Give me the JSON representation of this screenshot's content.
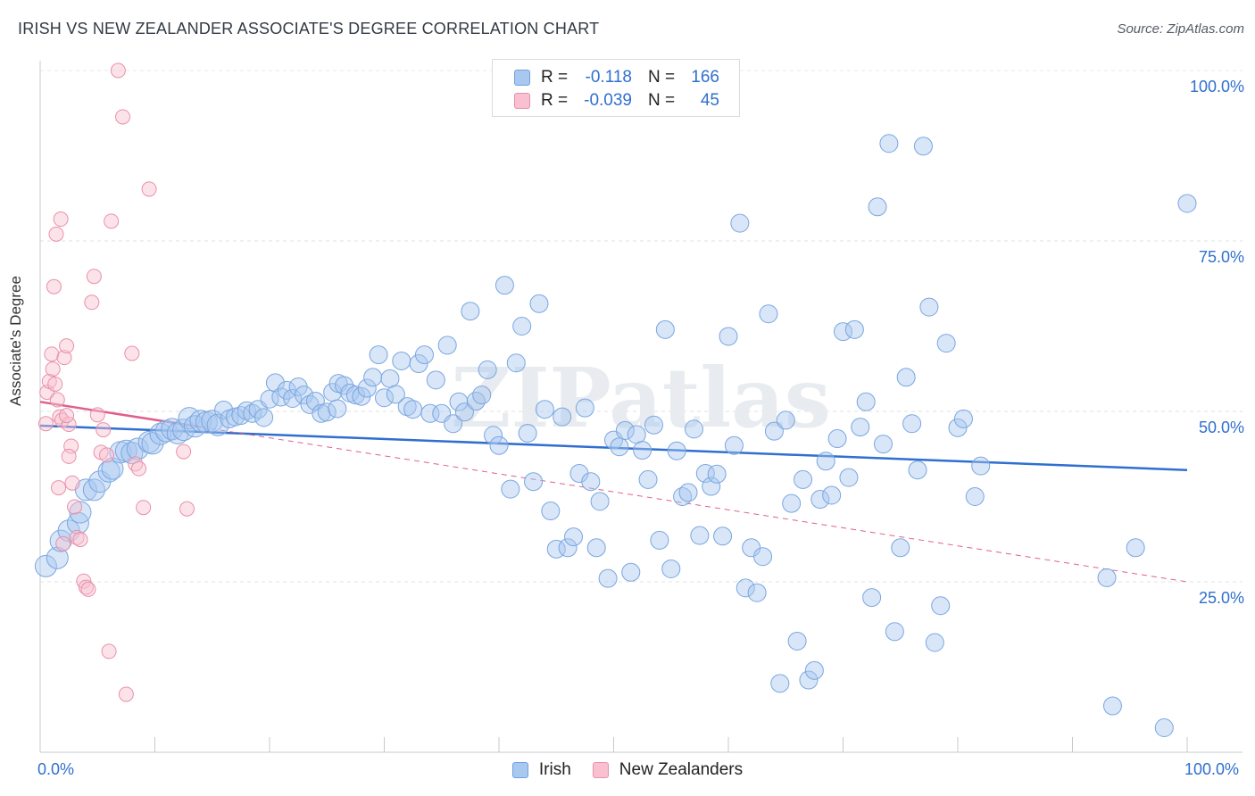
{
  "title": "IRISH VS NEW ZEALANDER ASSOCIATE'S DEGREE CORRELATION CHART",
  "source": "Source: ZipAtlas.com",
  "watermark": "ZIPatlas",
  "legend_top": [
    {
      "r_label": "R =",
      "r_value": "-0.118",
      "n_label": "N =",
      "n_value": "166",
      "color": "#a8c8f0",
      "stroke": "#6f9fe0"
    },
    {
      "r_label": "R =",
      "r_value": "-0.039",
      "n_label": "N =",
      "n_value": "45",
      "color": "#f8c0d0",
      "stroke": "#e890aa"
    }
  ],
  "legend_bottom": [
    {
      "label": "Irish",
      "color": "#a8c8f0",
      "stroke": "#6f9fe0"
    },
    {
      "label": "New Zealanders",
      "color": "#f8c0d0",
      "stroke": "#e890aa"
    }
  ],
  "axis": {
    "ylabel": "Associate's Degree",
    "x_tick_left": "0.0%",
    "x_tick_right": "100.0%",
    "y_ticks": [
      "100.0%",
      "75.0%",
      "50.0%",
      "25.0%"
    ]
  },
  "chart_data": {
    "type": "scatter",
    "title": "IRISH VS NEW ZEALANDER ASSOCIATE'S DEGREE CORRELATION CHART",
    "xlabel": "",
    "ylabel": "Associate's Degree",
    "xlim": [
      0,
      100
    ],
    "ylim": [
      0,
      100
    ],
    "y_ticks": [
      25,
      50,
      75,
      100
    ],
    "grid": "horizontal dashed",
    "legend_position": "top-center",
    "series": [
      {
        "name": "Irish",
        "color": "#6f9fe0",
        "trend": {
          "x0": 0,
          "y0": 47.9,
          "x1": 100,
          "y1": 41.4
        },
        "points": [
          [
            0.5,
            27.3
          ],
          [
            1.5,
            28.5
          ],
          [
            1.8,
            31
          ],
          [
            2.5,
            32.5
          ],
          [
            3.3,
            33.6
          ],
          [
            3.5,
            35.2
          ],
          [
            4,
            38.5
          ],
          [
            4.7,
            38.5
          ],
          [
            5.2,
            39.7
          ],
          [
            6,
            41.2
          ],
          [
            6.3,
            41.6
          ],
          [
            7,
            44
          ],
          [
            7.5,
            44.2
          ],
          [
            8,
            43.9
          ],
          [
            8.5,
            44.5
          ],
          [
            9.5,
            45.5
          ],
          [
            9.8,
            45.3
          ],
          [
            10.5,
            46.7
          ],
          [
            11,
            47.1
          ],
          [
            11.5,
            47.4
          ],
          [
            12,
            46.8
          ],
          [
            12.5,
            47.3
          ],
          [
            13,
            49
          ],
          [
            13.5,
            47.8
          ],
          [
            14,
            48.6
          ],
          [
            14.5,
            48.4
          ],
          [
            15,
            48.6
          ],
          [
            15.5,
            48
          ],
          [
            16,
            50.2
          ],
          [
            16.5,
            48.9
          ],
          [
            17,
            49.2
          ],
          [
            17.5,
            49.4
          ],
          [
            18,
            50.1
          ],
          [
            18.5,
            49.7
          ],
          [
            19,
            50.3
          ],
          [
            19.5,
            49.1
          ],
          [
            20,
            51.8
          ],
          [
            20.5,
            54.2
          ],
          [
            21,
            52.1
          ],
          [
            21.5,
            53.1
          ],
          [
            22,
            51.9
          ],
          [
            22.5,
            53.6
          ],
          [
            23,
            52.4
          ],
          [
            23.5,
            51
          ],
          [
            24,
            51.5
          ],
          [
            24.5,
            49.7
          ],
          [
            25,
            49.9
          ],
          [
            25.5,
            52.8
          ],
          [
            25.9,
            50.4
          ],
          [
            26,
            54.1
          ],
          [
            26.5,
            53.8
          ],
          [
            27,
            52.7
          ],
          [
            27.5,
            52.4
          ],
          [
            28,
            52.2
          ],
          [
            28.5,
            53.4
          ],
          [
            29,
            55
          ],
          [
            29.5,
            58.3
          ],
          [
            30,
            52
          ],
          [
            30.5,
            54.8
          ],
          [
            31,
            52.5
          ],
          [
            31.5,
            57.4
          ],
          [
            32,
            50.7
          ],
          [
            32.5,
            50.3
          ],
          [
            33,
            57
          ],
          [
            33.5,
            58.3
          ],
          [
            34,
            49.7
          ],
          [
            34.5,
            54.6
          ],
          [
            35,
            49.7
          ],
          [
            35.5,
            59.7
          ],
          [
            36,
            48.2
          ],
          [
            36.5,
            51.4
          ],
          [
            37,
            49.9
          ],
          [
            37.5,
            64.7
          ],
          [
            38,
            51.5
          ],
          [
            38.5,
            52.4
          ],
          [
            39,
            56.1
          ],
          [
            39.5,
            46.5
          ],
          [
            40,
            45
          ],
          [
            40.5,
            68.5
          ],
          [
            41,
            38.6
          ],
          [
            41.5,
            57.1
          ],
          [
            42,
            62.5
          ],
          [
            42.5,
            46.8
          ],
          [
            43,
            39.7
          ],
          [
            43.5,
            65.8
          ],
          [
            44,
            50.3
          ],
          [
            44.5,
            35.4
          ],
          [
            45,
            29.8
          ],
          [
            45.5,
            49.2
          ],
          [
            46,
            30
          ],
          [
            46.5,
            31.6
          ],
          [
            47,
            40.9
          ],
          [
            47.5,
            50.5
          ],
          [
            48,
            39.7
          ],
          [
            48.5,
            30
          ],
          [
            48.8,
            36.8
          ],
          [
            49.5,
            25.5
          ],
          [
            50,
            45.8
          ],
          [
            50.5,
            44.8
          ],
          [
            51,
            47.2
          ],
          [
            51.5,
            26.4
          ],
          [
            52,
            46.6
          ],
          [
            52.5,
            44.3
          ],
          [
            53,
            40
          ],
          [
            53.5,
            48
          ],
          [
            54,
            31.1
          ],
          [
            54.5,
            62
          ],
          [
            55,
            26.9
          ],
          [
            55.5,
            44.2
          ],
          [
            56,
            37.5
          ],
          [
            56.5,
            38.1
          ],
          [
            57,
            47.4
          ],
          [
            57.5,
            31.8
          ],
          [
            58,
            40.9
          ],
          [
            58.5,
            39
          ],
          [
            59,
            40.8
          ],
          [
            59.5,
            31.7
          ],
          [
            60,
            61
          ],
          [
            60.5,
            45
          ],
          [
            61,
            77.6
          ],
          [
            61.5,
            24.1
          ],
          [
            62,
            30
          ],
          [
            62.5,
            23.4
          ],
          [
            63,
            28.7
          ],
          [
            63.5,
            64.3
          ],
          [
            64,
            47.1
          ],
          [
            64.5,
            10.1
          ],
          [
            65,
            48.7
          ],
          [
            65.5,
            36.5
          ],
          [
            66,
            16.3
          ],
          [
            66.5,
            40
          ],
          [
            67,
            10.6
          ],
          [
            67.5,
            12
          ],
          [
            68,
            37.1
          ],
          [
            68.5,
            42.7
          ],
          [
            69,
            37.7
          ],
          [
            69.5,
            46
          ],
          [
            70,
            61.7
          ],
          [
            70.5,
            40.3
          ],
          [
            71,
            62
          ],
          [
            71.5,
            47.7
          ],
          [
            72,
            51.4
          ],
          [
            72.5,
            22.7
          ],
          [
            73,
            80
          ],
          [
            73.5,
            45.2
          ],
          [
            74,
            89.3
          ],
          [
            74.5,
            17.7
          ],
          [
            75,
            30
          ],
          [
            75.5,
            55
          ],
          [
            76,
            48.2
          ],
          [
            76.5,
            41.4
          ],
          [
            77,
            88.9
          ],
          [
            77.5,
            65.3
          ],
          [
            78,
            16.1
          ],
          [
            78.5,
            21.5
          ],
          [
            79,
            60
          ],
          [
            80,
            47.6
          ],
          [
            80.5,
            48.9
          ],
          [
            81.5,
            37.5
          ],
          [
            82,
            42
          ],
          [
            93,
            25.6
          ],
          [
            93.5,
            6.8
          ],
          [
            95.5,
            30
          ],
          [
            98,
            3.6
          ],
          [
            100,
            80.5
          ]
        ]
      },
      {
        "name": "New Zealanders",
        "color": "#e890aa",
        "trend": {
          "x0": 0,
          "y0": 51.4,
          "x1": 100,
          "y1": 25.0
        },
        "points": [
          [
            0.5,
            48.2
          ],
          [
            0.6,
            52.8
          ],
          [
            0.8,
            54.4
          ],
          [
            1,
            58.4
          ],
          [
            1.1,
            56.2
          ],
          [
            1.3,
            54
          ],
          [
            1.5,
            51.7
          ],
          [
            1.7,
            49.2
          ],
          [
            1.9,
            48.7
          ],
          [
            2.1,
            57.9
          ],
          [
            2.3,
            59.6
          ],
          [
            2.5,
            48.1
          ],
          [
            2.7,
            44.9
          ],
          [
            1.2,
            68.3
          ],
          [
            1.4,
            76
          ],
          [
            1.8,
            78.2
          ],
          [
            2.5,
            43.4
          ],
          [
            2.8,
            39.5
          ],
          [
            3,
            36
          ],
          [
            3.2,
            31.5
          ],
          [
            3.5,
            31.2
          ],
          [
            3.8,
            25.1
          ],
          [
            4,
            24.2
          ],
          [
            4.2,
            23.9
          ],
          [
            4.5,
            66
          ],
          [
            4.7,
            69.8
          ],
          [
            5,
            49.5
          ],
          [
            5.3,
            44
          ],
          [
            5.5,
            47.3
          ],
          [
            5.8,
            43.6
          ],
          [
            6,
            14.8
          ],
          [
            6.2,
            77.9
          ],
          [
            6.8,
            100
          ],
          [
            7.2,
            93.2
          ],
          [
            7.5,
            8.5
          ],
          [
            8,
            58.5
          ],
          [
            8.3,
            42.3
          ],
          [
            8.6,
            41.6
          ],
          [
            9,
            35.9
          ],
          [
            9.5,
            82.6
          ],
          [
            12.5,
            44.1
          ],
          [
            12.8,
            35.7
          ],
          [
            1.6,
            38.8
          ],
          [
            2,
            30.6
          ],
          [
            2.3,
            49.4
          ]
        ]
      }
    ]
  }
}
